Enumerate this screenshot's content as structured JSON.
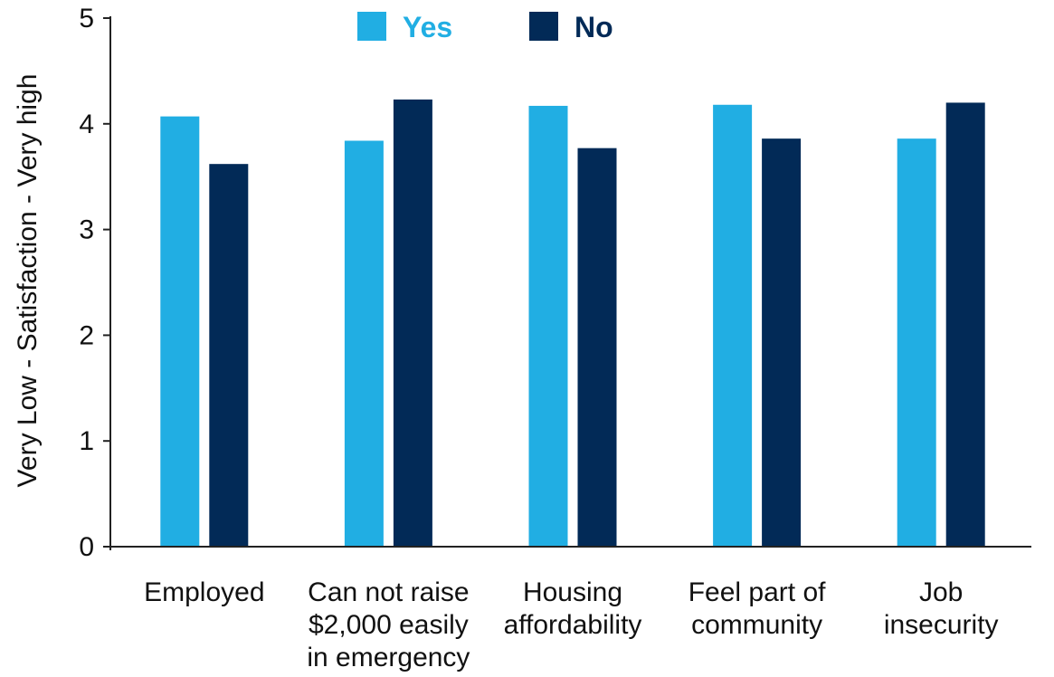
{
  "chart_data": {
    "type": "bar",
    "categories": [
      [
        "Employed"
      ],
      [
        "Can not raise",
        "$2,000 easily",
        "in emergency"
      ],
      [
        "Housing",
        "affordability"
      ],
      [
        "Feel part of",
        "community"
      ],
      [
        "Job",
        "insecurity"
      ]
    ],
    "series": [
      {
        "name": "Yes",
        "color": "#21aee3",
        "values": [
          4.07,
          3.84,
          4.17,
          4.18,
          3.86
        ]
      },
      {
        "name": "No",
        "color": "#022a57",
        "values": [
          3.62,
          4.23,
          3.77,
          3.86,
          4.2
        ]
      }
    ],
    "ylabel": "Very Low  -  Satisfaction  -  Very high",
    "xlabel": "",
    "ylim": [
      0,
      5
    ],
    "yticks": [
      "0",
      "1",
      "2",
      "3",
      "4",
      "5"
    ],
    "grid": false,
    "legend_position": "top"
  }
}
